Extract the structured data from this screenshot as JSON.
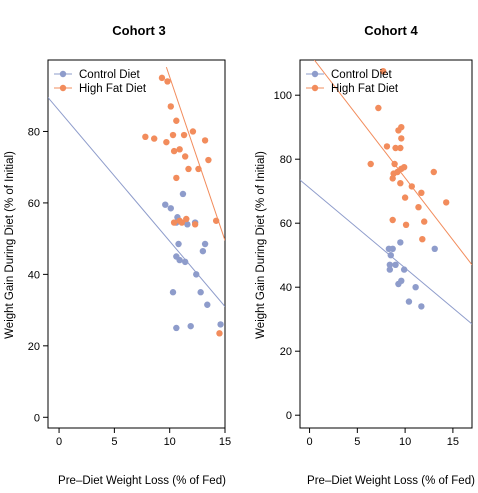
{
  "colors": {
    "control": "#8e9ccb",
    "highfat": "#f28c5c"
  },
  "chart_data": [
    {
      "type": "scatter",
      "title": "Cohort 3",
      "xlabel": "Pre–Diet Weight Loss (% of Fed)",
      "ylabel": "Weight Gain During Diet (% of Initial)",
      "xlim": [
        -1,
        15
      ],
      "ylim": [
        -3,
        100
      ],
      "xticks": [
        0,
        5,
        10,
        15
      ],
      "yticks": [
        0,
        20,
        40,
        60,
        80
      ],
      "legend": {
        "position": "top-left",
        "entries": [
          "Control Diet",
          "High Fat Diet"
        ]
      },
      "grid": false,
      "series": [
        {
          "name": "Control Diet",
          "points": [
            [
              9.6,
              59.5
            ],
            [
              10.1,
              58.5
            ],
            [
              10.6,
              54.5
            ],
            [
              10.7,
              56
            ],
            [
              11.2,
              62.5
            ],
            [
              11.6,
              54
            ],
            [
              12.3,
              54.5
            ],
            [
              10.8,
              48.5
            ],
            [
              10.6,
              45
            ],
            [
              10.9,
              44
            ],
            [
              11.4,
              43.5
            ],
            [
              13.2,
              48.5
            ],
            [
              13.0,
              46.5
            ],
            [
              12.4,
              40
            ],
            [
              10.3,
              35
            ],
            [
              12.8,
              35
            ],
            [
              13.4,
              31.5
            ],
            [
              10.6,
              25
            ],
            [
              11.9,
              25.5
            ],
            [
              14.6,
              26
            ]
          ],
          "fit": {
            "x": [
              -1,
              15
            ],
            "y": [
              89.5,
              31
            ]
          }
        },
        {
          "name": "High Fat Diet",
          "points": [
            [
              9.3,
              95
            ],
            [
              9.8,
              94
            ],
            [
              10.1,
              87
            ],
            [
              10.6,
              83
            ],
            [
              10.3,
              79
            ],
            [
              11.3,
              79
            ],
            [
              12.1,
              80
            ],
            [
              13.2,
              77.5
            ],
            [
              7.8,
              78.5
            ],
            [
              8.6,
              78
            ],
            [
              9.7,
              77
            ],
            [
              10.9,
              75
            ],
            [
              10.4,
              74.5
            ],
            [
              11.4,
              73
            ],
            [
              11.7,
              69.5
            ],
            [
              12.6,
              69.5
            ],
            [
              13.5,
              72
            ],
            [
              10.6,
              67
            ],
            [
              10.4,
              54.5
            ],
            [
              10.9,
              55
            ],
            [
              11.5,
              55.5
            ],
            [
              11.1,
              54.5
            ],
            [
              12.3,
              54
            ],
            [
              14.2,
              55
            ],
            [
              14.5,
              23.5
            ]
          ],
          "fit": {
            "x": [
              9.7,
              15
            ],
            "y": [
              98,
              49.5
            ]
          }
        }
      ]
    },
    {
      "type": "scatter",
      "title": "Cohort 4",
      "xlabel": "Pre–Diet Weight Loss (% of Fed)",
      "ylabel": "Weight Gain During Diet (% of Initial)",
      "xlim": [
        -1,
        17
      ],
      "ylim": [
        -4,
        111
      ],
      "xticks": [
        0,
        5,
        10,
        15
      ],
      "yticks": [
        0,
        20,
        40,
        60,
        80,
        100
      ],
      "legend": {
        "position": "top-left",
        "entries": [
          "Control Diet",
          "High Fat Diet"
        ]
      },
      "grid": false,
      "series": [
        {
          "name": "Control Diet",
          "points": [
            [
              8.3,
              52
            ],
            [
              8.7,
              52
            ],
            [
              8.5,
              50
            ],
            [
              9.5,
              54
            ],
            [
              9.0,
              47
            ],
            [
              8.4,
              47
            ],
            [
              8.4,
              45.5
            ],
            [
              9.9,
              45.5
            ],
            [
              9.6,
              42
            ],
            [
              9.3,
              41
            ],
            [
              10.4,
              35.5
            ],
            [
              11.1,
              40
            ],
            [
              11.7,
              34
            ],
            [
              13.1,
              52
            ]
          ],
          "fit": {
            "x": [
              -1,
              17
            ],
            "y": [
              73.5,
              28.5
            ]
          }
        },
        {
          "name": "High Fat Diet",
          "points": [
            [
              7.7,
              107.5
            ],
            [
              7.2,
              96
            ],
            [
              9.3,
              89
            ],
            [
              9.6,
              90
            ],
            [
              9.6,
              86.5
            ],
            [
              8.1,
              84
            ],
            [
              9.0,
              83.5
            ],
            [
              9.5,
              83.5
            ],
            [
              6.4,
              78.5
            ],
            [
              8.9,
              78.5
            ],
            [
              9.6,
              77
            ],
            [
              9.9,
              77.5
            ],
            [
              8.8,
              75.5
            ],
            [
              9.2,
              76
            ],
            [
              8.7,
              74
            ],
            [
              9.5,
              72.5
            ],
            [
              10.7,
              71.5
            ],
            [
              11.7,
              69.5
            ],
            [
              10.0,
              68
            ],
            [
              13.0,
              76
            ],
            [
              14.3,
              66.5
            ],
            [
              11.4,
              65
            ],
            [
              8.7,
              61
            ],
            [
              10.1,
              59.5
            ],
            [
              12.0,
              60.5
            ],
            [
              11.8,
              55
            ]
          ],
          "fit": {
            "x": [
              0.5,
              17
            ],
            "y": [
              111,
              47
            ]
          }
        }
      ]
    }
  ]
}
